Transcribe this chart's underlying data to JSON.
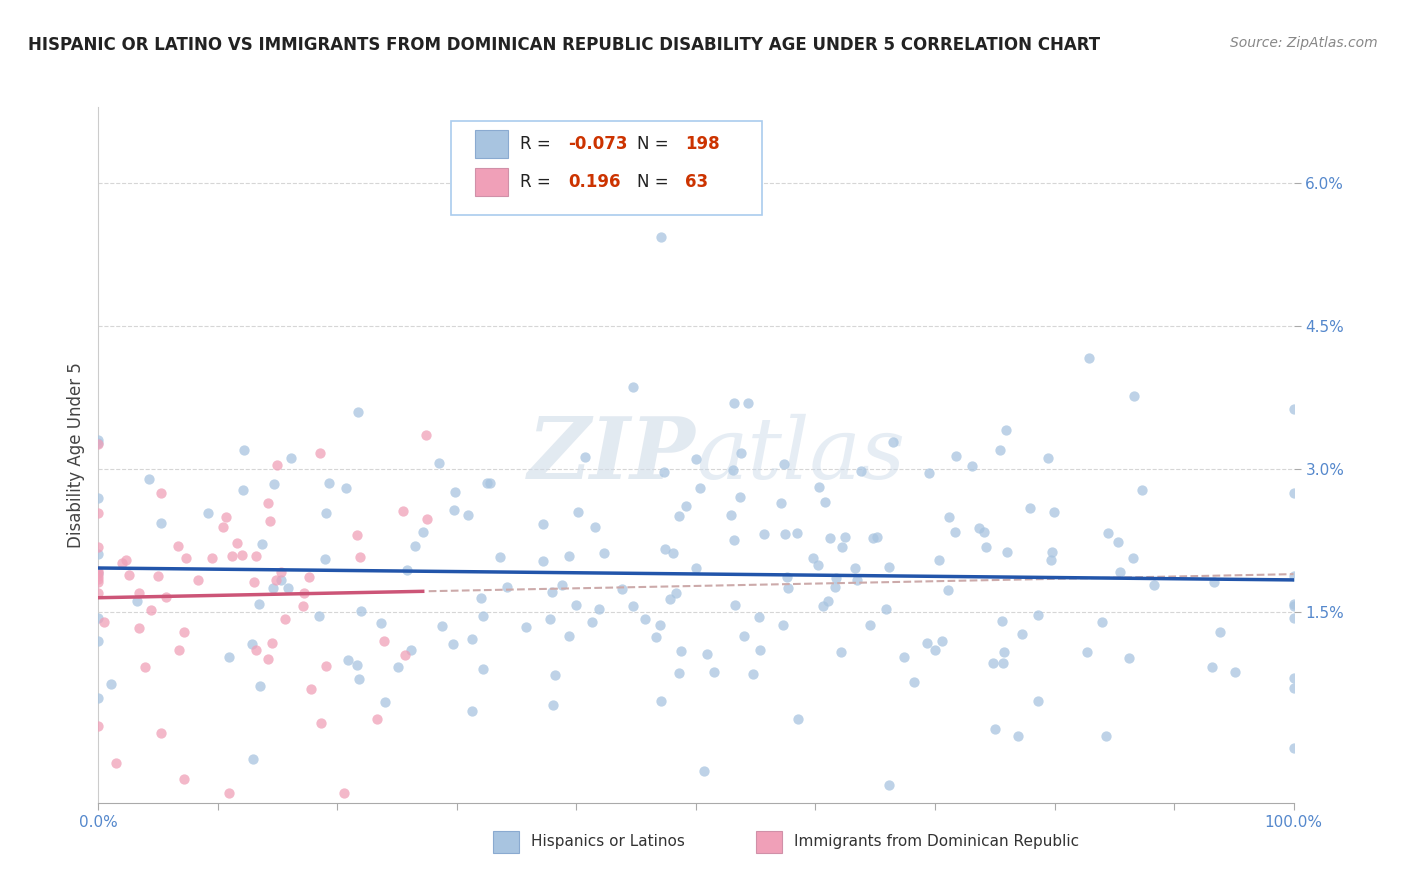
{
  "title": "HISPANIC OR LATINO VS IMMIGRANTS FROM DOMINICAN REPUBLIC DISABILITY AGE UNDER 5 CORRELATION CHART",
  "source": "Source: ZipAtlas.com",
  "ylabel": "Disability Age Under 5",
  "y_ticks": [
    0.015,
    0.03,
    0.045,
    0.06
  ],
  "y_tick_labels": [
    "1.5%",
    "3.0%",
    "4.5%",
    "6.0%"
  ],
  "x_lim": [
    0.0,
    1.0
  ],
  "y_lim": [
    -0.005,
    0.068
  ],
  "series1_label": "Hispanics or Latinos",
  "series1_color": "#a8c4e0",
  "series1_line_color": "#2255aa",
  "series1_R": -0.073,
  "series1_N": 198,
  "series2_label": "Immigrants from Dominican Republic",
  "series2_color": "#f0a0b8",
  "series2_line_color": "#cc5577",
  "series2_R": 0.196,
  "series2_N": 63,
  "watermark_zip": "ZIP",
  "watermark_atlas": "atlas",
  "background_color": "#ffffff",
  "title_fontsize": 12,
  "source_fontsize": 10,
  "tick_color": "#5588cc",
  "legend_text_color": "#222222",
  "legend_value_color": "#cc3300"
}
